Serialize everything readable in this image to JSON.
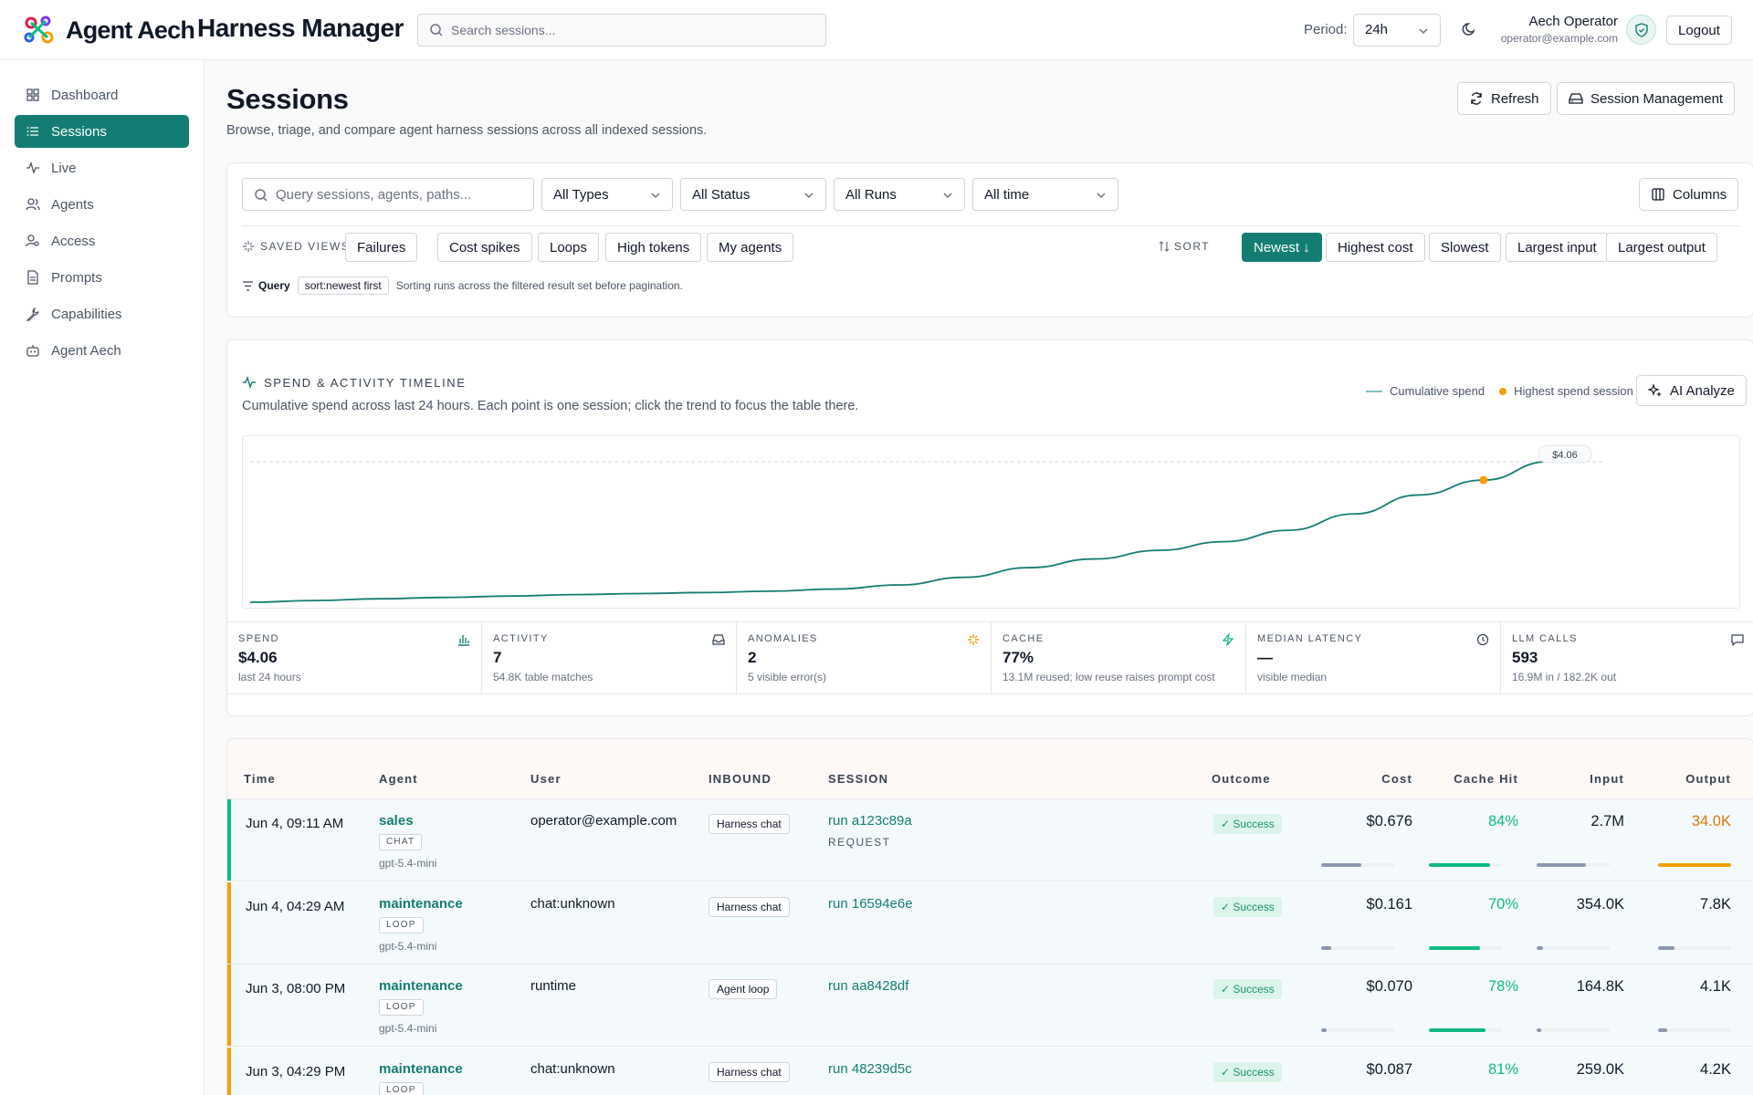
{
  "header": {
    "brand": "Agent Aech",
    "app_title": "Harness Manager",
    "search_placeholder": "Search sessions...",
    "period_label": "Period:",
    "period_value": "24h",
    "user_name": "Aech Operator",
    "user_email": "operator@example.com",
    "logout_label": "Logout"
  },
  "sidebar": {
    "items": [
      {
        "label": "Dashboard",
        "icon": "grid-icon"
      },
      {
        "label": "Sessions",
        "icon": "list-icon",
        "active": true
      },
      {
        "label": "Live",
        "icon": "pulse-icon"
      },
      {
        "label": "Agents",
        "icon": "users-icon"
      },
      {
        "label": "Access",
        "icon": "user-key-icon"
      },
      {
        "label": "Prompts",
        "icon": "document-icon"
      },
      {
        "label": "Capabilities",
        "icon": "wrench-icon"
      },
      {
        "label": "Agent Aech",
        "icon": "bot-icon"
      }
    ]
  },
  "page": {
    "title": "Sessions",
    "subtitle": "Browse, triage, and compare agent harness sessions across all indexed sessions.",
    "refresh_label": "Refresh",
    "session_mgmt_label": "Session Management"
  },
  "filters": {
    "query_placeholder": "Query sessions, agents, paths...",
    "type_value": "All Types",
    "status_value": "All Status",
    "runs_value": "All Runs",
    "time_value": "All time",
    "columns_label": "Columns",
    "saved_views_label": "SAVED VIEWS",
    "saved_views": [
      "Failures",
      "Cost spikes",
      "Loops",
      "High tokens",
      "My agents"
    ],
    "sort_label": "SORT",
    "sort_options": [
      "Newest ↓",
      "Highest cost",
      "Slowest",
      "Largest input",
      "Largest output"
    ],
    "query_label": "Query",
    "query_pill": "sort:newest first",
    "query_note": "Sorting runs across the filtered result set before pagination."
  },
  "timeline": {
    "title": "SPEND & ACTIVITY TIMELINE",
    "subtitle": "Cumulative spend across last 24 hours. Each point is one session; click the trend to focus the table there.",
    "legend_line": "Cumulative spend",
    "legend_point": "Highest spend session",
    "analyze_label": "AI Analyze",
    "end_label": "$4.06",
    "line_color": "#147d73",
    "highlight_color": "#f59e0b"
  },
  "chart_data": {
    "type": "line",
    "series": [
      {
        "name": "Cumulative spend",
        "values": [
          0.0,
          0.05,
          0.1,
          0.14,
          0.18,
          0.22,
          0.25,
          0.28,
          0.32,
          0.38,
          0.5,
          0.72,
          1.0,
          1.25,
          1.5,
          1.75,
          2.08,
          2.55,
          3.1,
          3.53,
          4.06
        ]
      }
    ],
    "highlight_index": 19,
    "ylim": [
      0,
      4.06
    ],
    "grid": false,
    "legend": "top-right"
  },
  "metrics": [
    {
      "label": "SPEND",
      "value": "$4.06",
      "sub": "last 24 hours",
      "icon": "bar-chart-icon"
    },
    {
      "label": "ACTIVITY",
      "value": "7",
      "sub": "54.8K table matches",
      "icon": "inbox-icon"
    },
    {
      "label": "ANOMALIES",
      "value": "2",
      "sub": "5 visible error(s)",
      "icon": "sparkle-icon"
    },
    {
      "label": "CACHE",
      "value": "77%",
      "sub": "13.1M reused; low reuse raises prompt cost",
      "icon": "bolt-icon"
    },
    {
      "label": "MEDIAN LATENCY",
      "value": "—",
      "sub": "visible median",
      "icon": "clock-icon"
    },
    {
      "label": "LLM CALLS",
      "value": "593",
      "sub": "16.9M in / 182.2K out",
      "icon": "message-icon"
    }
  ],
  "table": {
    "columns": [
      "Time",
      "Agent",
      "User",
      "INBOUND",
      "SESSION",
      "Outcome",
      "Cost",
      "Cache Hit",
      "Input",
      "Output"
    ],
    "rows": [
      {
        "time": "Jun 4, 09:11 AM",
        "agent": "sales",
        "tag": "CHAT",
        "model": "gpt-5.4-mini",
        "user": "operator@example.com",
        "inbound": "Harness chat",
        "session": "run a123c89a",
        "session_sub": "REQUEST",
        "outcome": "✓ Success",
        "cost": "$0.676",
        "cost_pct": 0.55,
        "cache": "84%",
        "cache_pct": 0.84,
        "input": "2.7M",
        "input_pct": 0.68,
        "output": "34.0K",
        "output_pct": 1.0,
        "accent": "#10b981",
        "output_color": "#d97706"
      },
      {
        "time": "Jun 4, 04:29 AM",
        "agent": "maintenance",
        "tag": "LOOP",
        "model": "gpt-5.4-mini",
        "user": "chat:unknown",
        "inbound": "Harness chat",
        "session": "run 16594e6e",
        "session_sub": "",
        "outcome": "✓ Success",
        "cost": "$0.161",
        "cost_pct": 0.14,
        "cache": "70%",
        "cache_pct": 0.7,
        "input": "354.0K",
        "input_pct": 0.09,
        "output": "7.8K",
        "output_pct": 0.23,
        "accent": "#f59e0b",
        "output_color": "#111827"
      },
      {
        "time": "Jun 3, 08:00 PM",
        "agent": "maintenance",
        "tag": "LOOP",
        "model": "gpt-5.4-mini",
        "user": "runtime",
        "inbound": "Agent loop",
        "session": "run aa8428df",
        "session_sub": "",
        "outcome": "✓ Success",
        "cost": "$0.070",
        "cost_pct": 0.07,
        "cache": "78%",
        "cache_pct": 0.78,
        "input": "164.8K",
        "input_pct": 0.06,
        "output": "4.1K",
        "output_pct": 0.12,
        "accent": "#f59e0b",
        "output_color": "#111827"
      },
      {
        "time": "Jun 3, 04:29 PM",
        "agent": "maintenance",
        "tag": "LOOP",
        "model": "",
        "user": "chat:unknown",
        "inbound": "Harness chat",
        "session": "run 48239d5c",
        "session_sub": "",
        "outcome": "✓ Success",
        "cost": "$0.087",
        "cost_pct": 0.08,
        "cache": "81%",
        "cache_pct": 0.81,
        "input": "259.0K",
        "input_pct": 0.07,
        "output": "4.2K",
        "output_pct": 0.13,
        "accent": "#f59e0b",
        "output_color": "#111827"
      }
    ]
  }
}
